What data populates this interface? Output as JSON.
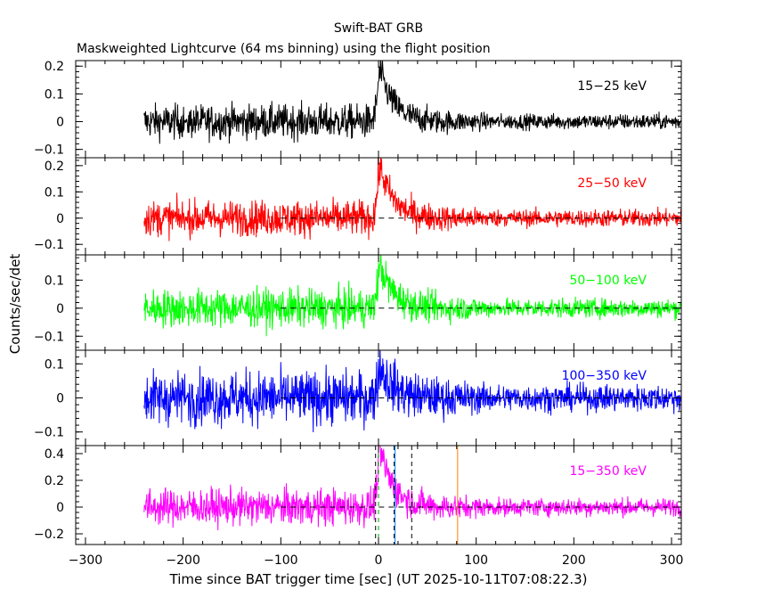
{
  "chart_data": {
    "type": "line",
    "title": "Swift-BAT GRB",
    "subtitle": "Maskweighted Lightcurve (64 ms binning) using the flight position",
    "xlabel": "Time since BAT trigger time [sec] (UT 2025-10-11T07:08:22.3)",
    "ylabel": "Counts/sec/det",
    "xlim": [
      -310,
      310
    ],
    "x_ticks": [
      -300,
      -200,
      -100,
      0,
      100,
      200,
      300
    ],
    "x_tick_labels": [
      "−300",
      "−200",
      "−100",
      "0",
      "100",
      "200",
      "300"
    ],
    "data_x_range": [
      -240,
      310
    ],
    "grid": false,
    "panels": [
      {
        "band": "15−25 keV",
        "color": "#000000",
        "ylim": [
          -0.13,
          0.22
        ],
        "y_ticks": [
          -0.1,
          0,
          0.1,
          0.2
        ],
        "y_tick_labels": [
          "−0.1",
          "0",
          "0.1",
          "0.2"
        ],
        "zero_line_from": null,
        "noise_amplitude": 0.055,
        "noise_decay": 0.025,
        "peak": 0.18,
        "peak_time": 2
      },
      {
        "band": "25−50 keV",
        "color": "#ff0000",
        "ylim": [
          -0.14,
          0.23
        ],
        "y_ticks": [
          -0.1,
          0,
          0.1,
          0.2
        ],
        "y_tick_labels": [
          "−0.1",
          "0",
          "0.1",
          "0.2"
        ],
        "zero_line_from": -100,
        "noise_amplitude": 0.06,
        "noise_decay": 0.03,
        "peak": 0.19,
        "peak_time": 2
      },
      {
        "band": "50−100 keV",
        "color": "#00ff00",
        "ylim": [
          -0.15,
          0.19
        ],
        "y_ticks": [
          -0.1,
          0,
          0.1
        ],
        "y_tick_labels": [
          "−0.1",
          "0",
          "0.1"
        ],
        "zero_line_from": -100,
        "noise_amplitude": 0.06,
        "noise_decay": 0.03,
        "peak": 0.15,
        "peak_time": 2
      },
      {
        "band": "100−350 keV",
        "color": "#0000ff",
        "ylim": [
          -0.14,
          0.14
        ],
        "y_ticks": [
          -0.1,
          0,
          0.1
        ],
        "y_tick_labels": [
          "−0.1",
          "0",
          "0.1"
        ],
        "zero_line_from": -100,
        "noise_amplitude": 0.07,
        "noise_decay": 0.035,
        "peak": 0.09,
        "peak_time": 2
      },
      {
        "band": "15−350 keV",
        "color": "#ff00ff",
        "ylim": [
          -0.28,
          0.46
        ],
        "y_ticks": [
          -0.2,
          0,
          0.2,
          0.4
        ],
        "y_tick_labels": [
          "−0.2",
          "0",
          "0.2",
          "0.4"
        ],
        "zero_line_from": -100,
        "noise_amplitude": 0.12,
        "noise_decay": 0.06,
        "peak": 0.42,
        "peak_time": 2
      }
    ],
    "markers": [
      {
        "x": -3,
        "color": "#000000",
        "style": "dashed"
      },
      {
        "x": 0,
        "color": "#00aa00",
        "style": "dashed"
      },
      {
        "x": 16,
        "color": "#000000",
        "style": "dashed"
      },
      {
        "x": 17,
        "color": "#0080ff",
        "style": "solid"
      },
      {
        "x": 34,
        "color": "#000000",
        "style": "dashed"
      },
      {
        "x": 81,
        "color": "#ff8000",
        "style": "solid"
      }
    ]
  }
}
